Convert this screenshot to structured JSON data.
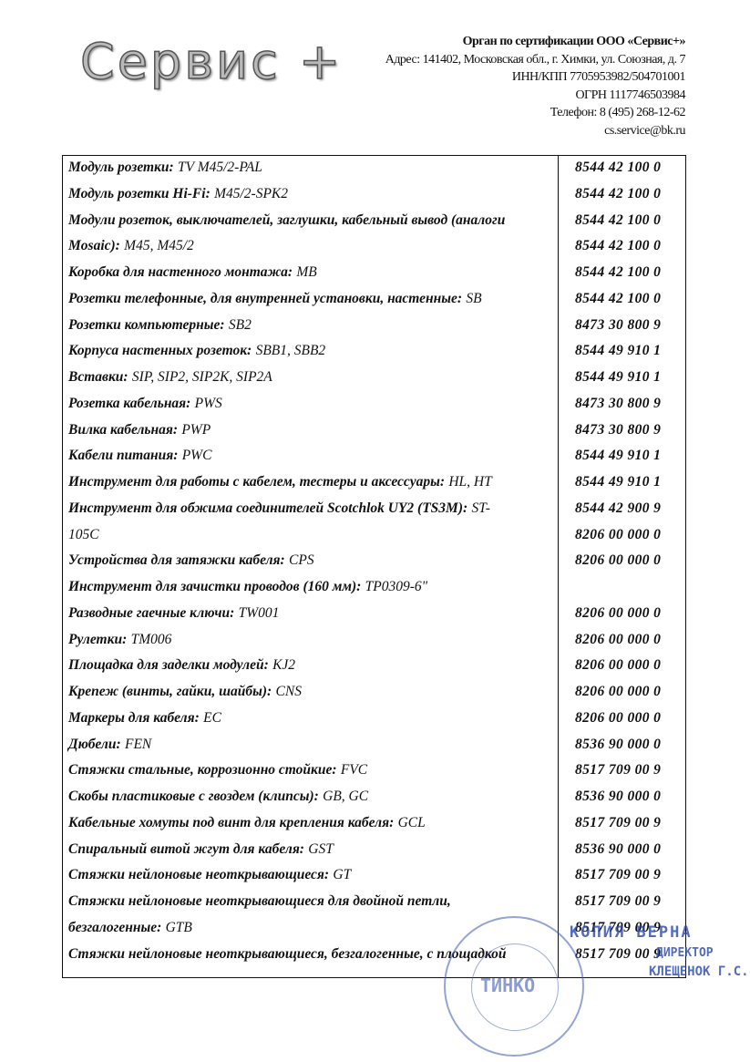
{
  "header": {
    "logo": "Сервис +",
    "lines": [
      "Орган по сертификации ООО «Сервис+»",
      "Адрес: 141402, Московская обл., г. Химки, ул. Союзная, д. 7",
      "ИНН/КПП 7705953982/504701001",
      "ОГРН 1117746503984",
      "Телефон: 8 (495) 268-12-62",
      "cs.service@bk.ru"
    ]
  },
  "table": {
    "rows": [
      {
        "label": "Модуль розетки:",
        "item": "TV M45/2-PAL",
        "code": "8544 42 100 0"
      },
      {
        "label": "Модуль розетки Hi-Fi:",
        "item": "M45/2-SPK2",
        "code": "8544 42 100 0"
      },
      {
        "label": "Модули розеток, выключателей, заглушки, кабельный вывод (аналоги",
        "code": "8544 42 100 0"
      },
      {
        "label": "Mosaic):",
        "item": "M45, M45/2",
        "code": "8544 42 100 0"
      },
      {
        "label": "Коробка для настенного монтажа:",
        "item": "MB",
        "code": "8544 42 100 0"
      },
      {
        "label": "Розетки телефонные, для внутренней установки, настенные:",
        "item": "SB",
        "code": "8544 42 100 0"
      },
      {
        "label": "Розетки компьютерные:",
        "item": "SB2",
        "code": "8473 30 800 9"
      },
      {
        "label": "Корпуса настенных розеток:",
        "item": "SBB1, SBB2",
        "code": "8544 49 910 1"
      },
      {
        "label": "Вставки:",
        "item": "SIP, SIP2, SIP2K, SIP2A",
        "code": "8544 49 910 1"
      },
      {
        "label": "Розетка кабельная:",
        "item": "PWS",
        "code": "8473 30 800 9"
      },
      {
        "label": "Вилка кабельная:",
        "item": "PWP",
        "code": "8473 30 800 9"
      },
      {
        "label": "Кабели питания:",
        "item": "PWC",
        "code": "8544 49 910 1"
      },
      {
        "label": "Инструмент для работы с кабелем, тестеры и аксессуары:",
        "item": "HL, HT",
        "code": "8544 49 910 1"
      },
      {
        "label": "Инструмент для обжима соединителей Scotchlok UY2 (TS3M):",
        "item": "ST-",
        "code": "8544 42 900 9"
      },
      {
        "item": "105C",
        "code": "8206 00 000 0"
      },
      {
        "label": "Устройства для затяжки кабеля:",
        "item": "CPS",
        "code": "8206 00 000 0"
      },
      {
        "label": "Инструмент для зачистки проводов (160 мм):",
        "item": "TP0309-6\""
      },
      {
        "label": "Разводные гаечные ключи:",
        "item": "TW001",
        "code": "8206 00 000 0"
      },
      {
        "label": "Рулетки:",
        "item": "TM006",
        "code": "8206 00 000 0"
      },
      {
        "label": "Площадка для заделки модулей:",
        "item": "KJ2",
        "code": "8206 00 000 0"
      },
      {
        "label": "Крепеж (винты, гайки, шайбы):",
        "item": "CNS",
        "code": "8206 00 000 0"
      },
      {
        "label": "Маркеры для кабеля:",
        "item": "EC",
        "code": "8206 00 000 0"
      },
      {
        "label": "Дюбели:",
        "item": "FEN",
        "code": "8536 90 000 0"
      },
      {
        "label": "Стяжки стальные, коррозионно стойкие:",
        "item": "FVC",
        "code": "8517 709 00 9"
      },
      {
        "label": "Скобы пластиковые с гвоздем (клипсы):",
        "item": "GB, GC",
        "code": "8536 90 000 0"
      },
      {
        "label": "Кабельные хомуты под винт для крепления кабеля:",
        "item": "GCL",
        "code": "8517 709 00 9"
      },
      {
        "label": "Спиральный витой жгут для кабеля:",
        "item": "GST",
        "code": "8536 90 000 0"
      },
      {
        "label": "Стяжки нейлоновые неоткрывающиеся:",
        "item": "GT",
        "code": "8517 709 00 9"
      },
      {
        "label": "Стяжки нейлоновые неоткрывающиеся для двойной петли,",
        "code": "8517 709 00 9"
      },
      {
        "label": "безгалогенные:",
        "item": "GTB",
        "code": "8517 709 00 9"
      },
      {
        "label": "Стяжки нейлоновые неоткрывающиеся, безгалогенные, с площадкой",
        "code": "8517 709 00 9"
      }
    ]
  },
  "stamp": {
    "center": "ТИНКО",
    "copy": "КОПИЯ ВЕРНА",
    "position": "ДИРЕКТОР",
    "name": "КЛЕЩЕНОК Г.С."
  }
}
